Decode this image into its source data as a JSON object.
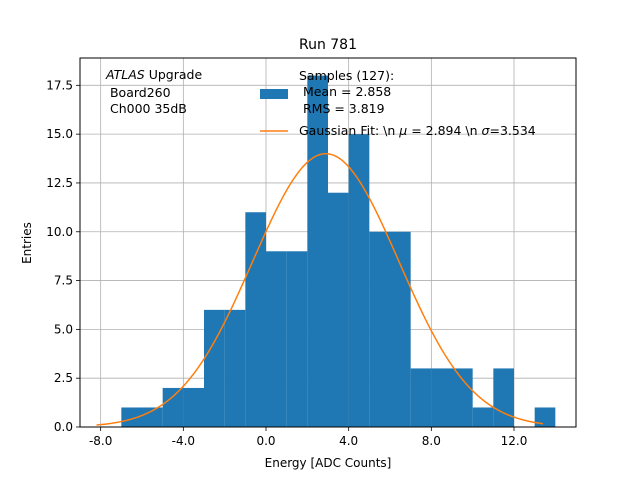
{
  "chart_data": {
    "type": "bar",
    "title": "Run 781",
    "xlabel": "Energy [ADC Counts]",
    "ylabel": "Entries",
    "xlim": [
      -9,
      15
    ],
    "ylim": [
      0,
      18.9
    ],
    "grid": true,
    "xticks": [
      -8,
      -4,
      0,
      4,
      8,
      12
    ],
    "xtick_labels": [
      "-8.0",
      "-4.0",
      "0.0",
      "4.0",
      "8.0",
      "12.0"
    ],
    "yticks": [
      0,
      2.5,
      5,
      7.5,
      10,
      12.5,
      15,
      17.5
    ],
    "ytick_labels": [
      "0.0",
      "2.5",
      "5.0",
      "7.5",
      "10.0",
      "12.5",
      "15.0",
      "17.5"
    ],
    "bin_edges": [
      -7,
      -6,
      -5,
      -4,
      -3,
      -2,
      -1,
      0,
      1,
      2,
      3,
      4,
      5,
      6,
      7,
      8,
      9,
      10,
      11,
      12,
      13,
      14
    ],
    "counts": [
      1,
      1,
      2,
      2,
      6,
      6,
      11,
      9,
      9,
      18,
      12,
      15,
      10,
      10,
      3,
      3,
      3,
      1,
      3,
      0,
      1
    ],
    "fit": {
      "mu": 2.894,
      "sigma": 3.534,
      "amplitude": 14,
      "x_range": [
        -8.2,
        13.4
      ]
    },
    "colors": {
      "bars": "#1f77b4",
      "fit": "#ff7f0e",
      "grid": "#b0b0b0"
    },
    "annotation": {
      "atlas": "ATLAS",
      "upgrade": " Upgrade",
      "board": " Board260",
      "channel": " Ch000 35dB"
    },
    "legend": {
      "position": "top-right",
      "bars_title": "Samples (127):",
      "bars_mean": " Mean = 2.858",
      "bars_rms": " RMS = 3.819",
      "fit_prefix": "Gaussian Fit: \\n ",
      "mu_symbol": "μ",
      "fit_mu": " = 2.894 \\n ",
      "sigma_symbol": "σ",
      "fit_sigma": "=3.534"
    }
  }
}
